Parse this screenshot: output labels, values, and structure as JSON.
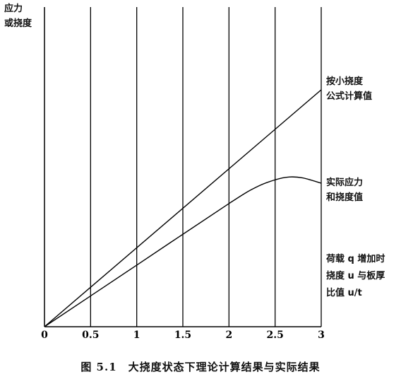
{
  "chart_data": {
    "type": "line",
    "y_axis_label_lines": [
      "应力",
      "或挠度"
    ],
    "x_ticks": [
      0,
      0.5,
      1,
      1.5,
      2,
      2.5,
      3
    ],
    "x_tick_labels": [
      "0",
      "0.5",
      "1",
      "1.5",
      "2",
      "2.5",
      "3"
    ],
    "xlim": [
      0,
      3
    ],
    "grid": "vertical",
    "series": [
      {
        "label_lines": [
          "按小挠度",
          "公式计算值"
        ],
        "points": [
          [
            0,
            0
          ],
          [
            3,
            1.0
          ]
        ]
      },
      {
        "label_lines": [
          "实际应力",
          "和挠度值"
        ],
        "points": [
          [
            0,
            0
          ],
          [
            1,
            0.26
          ],
          [
            2,
            0.52
          ],
          [
            2.3,
            0.59
          ],
          [
            2.5,
            0.62
          ],
          [
            2.65,
            0.632
          ],
          [
            2.8,
            0.628
          ],
          [
            3,
            0.606
          ]
        ]
      }
    ],
    "x_annotation_lines": [
      "荷载 q 增加时",
      "挠度 u 与板厚",
      "比值 u/t"
    ],
    "caption": "图 5.1　大挠度状态下理论计算结果与实际结果"
  }
}
